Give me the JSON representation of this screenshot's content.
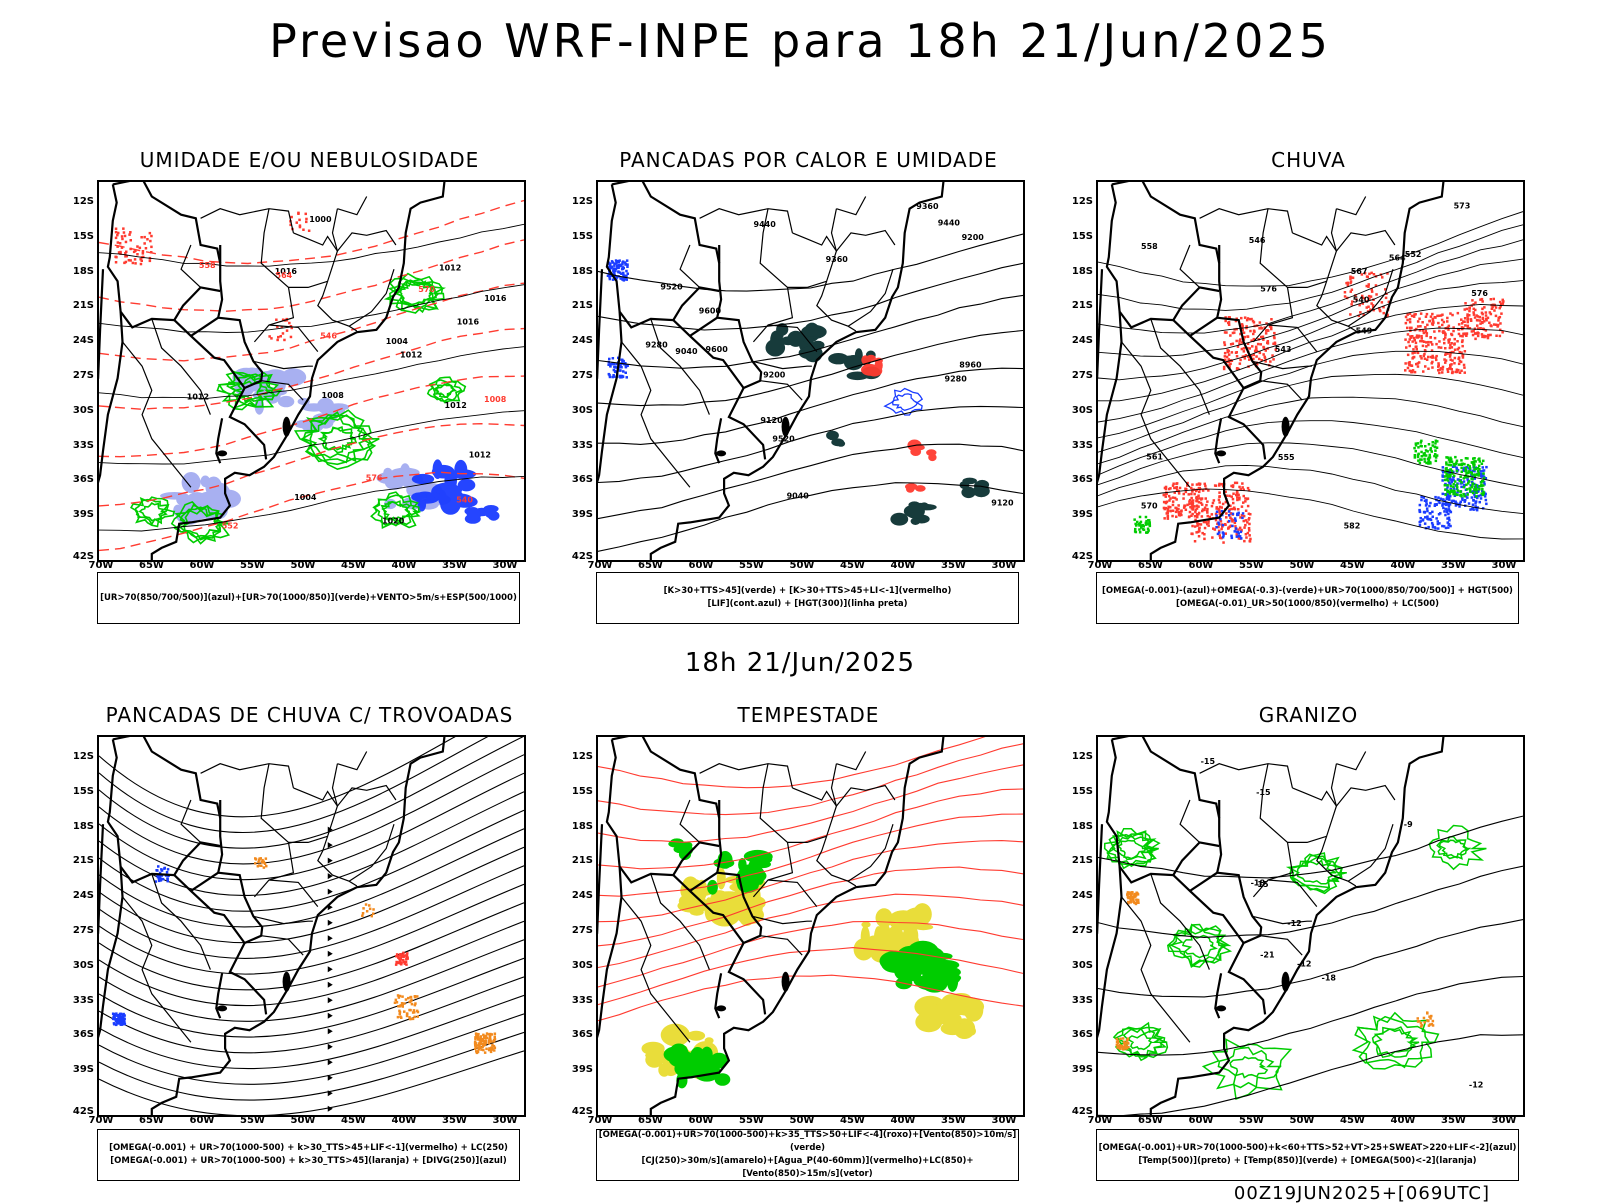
{
  "header": {
    "title": "Previsao WRF-INPE  para 18h 21/Jun/2025"
  },
  "middle": {
    "title": "18h 21/Jun/2025"
  },
  "footer": {
    "run": "00Z19JUN2025+[069UTC]"
  },
  "axes": {
    "lat_labels": [
      "12S",
      "15S",
      "18S",
      "21S",
      "24S",
      "27S",
      "30S",
      "33S",
      "36S",
      "39S",
      "42S"
    ],
    "lon_labels": [
      "70W",
      "65W",
      "60W",
      "55W",
      "50W",
      "45W",
      "40W",
      "35W",
      "30W"
    ]
  },
  "colors": {
    "red": "#ff3b30",
    "green": "#00cc00",
    "blue": "#1a3cff",
    "lightblue": "#9fa8f0",
    "teal": "#173b3b",
    "orange": "#f28a1e",
    "yellow": "#e8dc30"
  },
  "panels": [
    {
      "title": "UMIDADE E/OU NEBULOSIDADE",
      "legend": [
        "[UR>70(850/700/500)](azul)+[UR>70(1000/850)](verde)+VENTO>5m/s+ESP(500/1000)"
      ],
      "contours": [
        "1012",
        "1012",
        "1012",
        "1016",
        "1016",
        "1020",
        "1016",
        "1012",
        "1008",
        "1004",
        "1000",
        "1004",
        "1012",
        "1008",
        "576",
        "570",
        "564",
        "558",
        "552",
        "546",
        "540"
      ]
    },
    {
      "title": "PANCADAS POR CALOR E UMIDADE",
      "legend": [
        "[K>30+TTS>45](verde) + [K>30+TTS>45+LI<-1](vermelho)",
        "[LIF](cont.azul) + [HGT(300)](linha preta)"
      ],
      "contours": [
        "9600",
        "9600",
        "9520",
        "9520",
        "9440",
        "9440",
        "9360",
        "9360",
        "9280",
        "9280",
        "9200",
        "9200",
        "9120",
        "9120",
        "9040",
        "9040",
        "8960"
      ]
    },
    {
      "title": "CHUVA",
      "legend": [
        "[OMEGA(-0.001)-(azul)+OMEGA(-0.3)-(verde)+UR>70(1000/850/700/500)] + HGT(500)",
        "[OMEGA(-0.01)_UR>50(1000/850)(vermelho) + LC(500)"
      ],
      "contours": [
        "582",
        "576",
        "576",
        "573",
        "570",
        "567",
        "564",
        "561",
        "558",
        "555",
        "552",
        "549",
        "546",
        "543",
        "540"
      ]
    },
    {
      "title": "PANCADAS DE CHUVA C/ TROVOADAS",
      "legend": [
        "[OMEGA(-0.001) + UR>70(1000-500) + k>30_TTS>45+LIF<-1](vermelho) + LC(250)",
        "[OMEGA(-0.001) + UR>70(1000-500) + k>30_TTS>45](laranja) + [DIVG(250)](azul)"
      ],
      "contours": []
    },
    {
      "title": "TEMPESTADE",
      "legend": [
        "[OMEGA(-0.001)+UR>70(1000-500)+k>35_TTS>50+LIF<-4](roxo)+[Vento(850)>10m/s](verde)",
        "[CJ(250)>30m/s](amarelo)+[Agua_P(40-60mm)](vermelho)+LC(850)+[Vento(850)>15m/s](vetor)"
      ],
      "contours": []
    },
    {
      "title": "GRANIZO",
      "legend": [
        "[OMEGA(-0.001)+UR>70(1000-500)+k<60+TTS>52+VT>25+SWEAT>220+LIF<-2](azul)",
        "[Temp(500)](preto) + [Temp(850)](verde) + [OMEGA(500)<-2](laranja)"
      ],
      "contours": [
        "-9",
        "-12",
        "-15",
        "-15",
        "-15",
        "-18",
        "-18",
        "-21",
        "-12",
        "-12"
      ]
    }
  ]
}
